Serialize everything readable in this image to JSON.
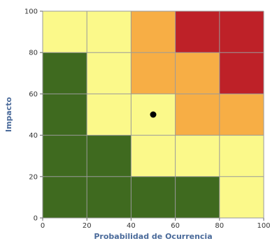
{
  "chart_data": {
    "type": "heatmap",
    "title": "",
    "xlabel": "Probabilidad de Ocurrencia",
    "ylabel": "Impacto",
    "xlim": [
      0,
      100
    ],
    "ylim": [
      0,
      100
    ],
    "x_ticks": [
      "0",
      "20",
      "40",
      "60",
      "80",
      "100"
    ],
    "y_ticks": [
      "0",
      "20",
      "40",
      "60",
      "80",
      "100"
    ],
    "grid": true,
    "colors": {
      "green": "#3f6a1f",
      "yellow": "#fbf98a",
      "orange": "#f7ae45",
      "red": "#be2128",
      "grid": "#9a9a9a",
      "point": "#000000"
    },
    "cells_by_row_top_to_bottom": [
      [
        "yellow",
        "yellow",
        "orange",
        "red",
        "red"
      ],
      [
        "green",
        "yellow",
        "orange",
        "orange",
        "red"
      ],
      [
        "green",
        "yellow",
        "yellow",
        "orange",
        "orange"
      ],
      [
        "green",
        "green",
        "yellow",
        "yellow",
        "yellow"
      ],
      [
        "green",
        "green",
        "green",
        "green",
        "yellow"
      ]
    ],
    "point": {
      "x": 50,
      "y": 50
    }
  }
}
